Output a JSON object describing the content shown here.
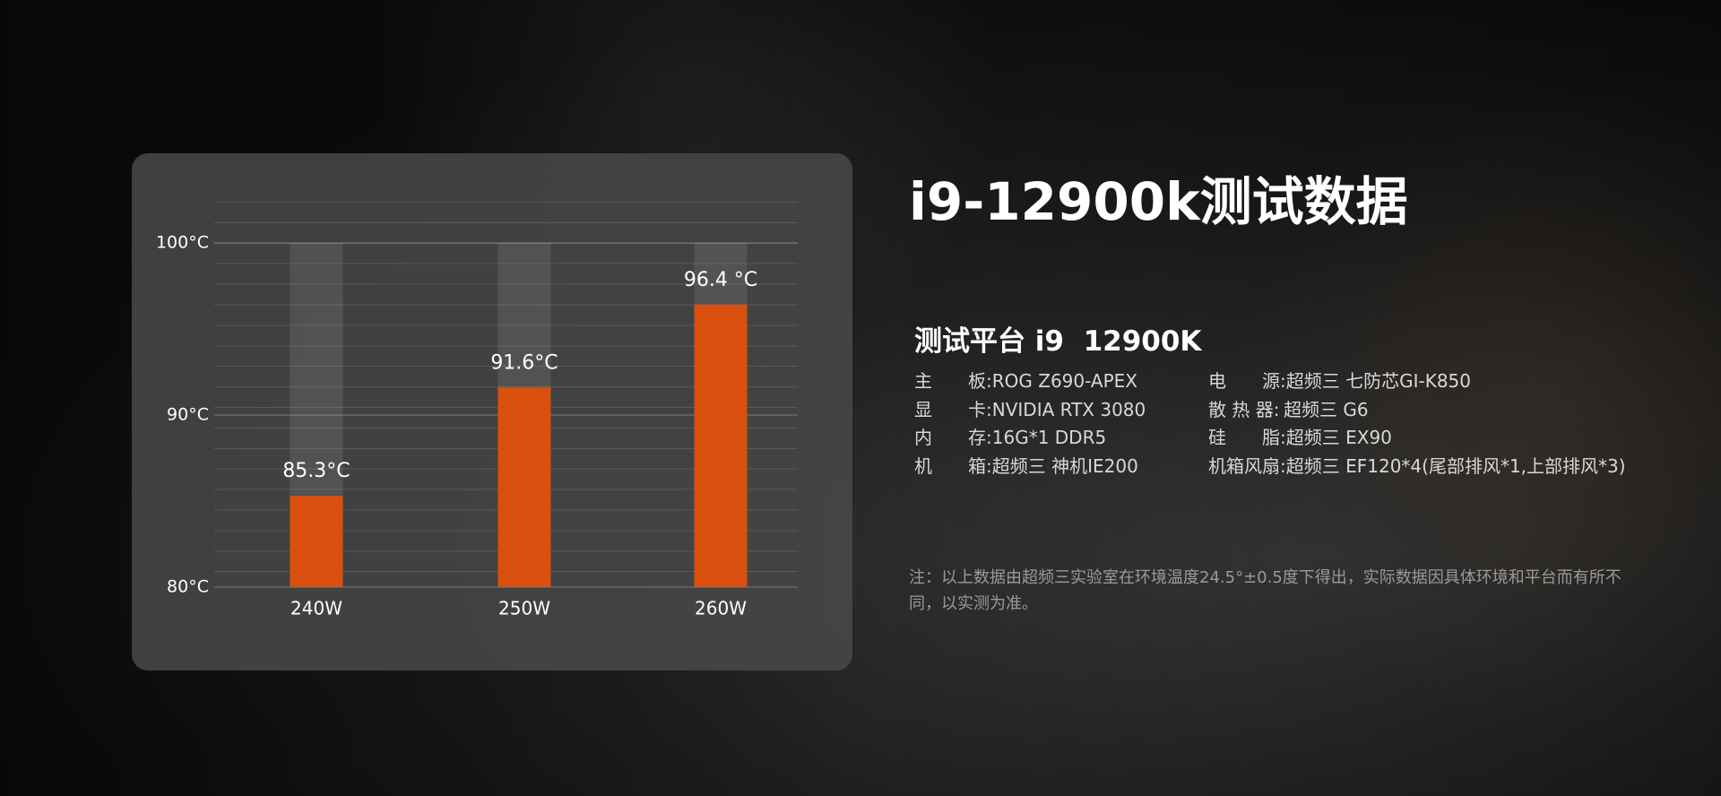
{
  "chart_data": {
    "type": "bar",
    "categories": [
      "240W",
      "250W",
      "260W"
    ],
    "values": [
      85.3,
      91.6,
      96.4
    ],
    "value_labels": [
      "85.3°C",
      "91.6°C",
      "96.4 °C"
    ],
    "color": "#d9500f",
    "ylim": [
      80,
      100
    ],
    "yticks": [
      {
        "value": 80,
        "label": "80°C"
      },
      {
        "value": 90,
        "label": "90°C"
      },
      {
        "value": 100,
        "label": "100°C"
      }
    ],
    "grid": true
  },
  "header": {
    "title": "i9-12900k测试数据"
  },
  "platform": {
    "title": "测试平台 i9  12900K",
    "left": [
      {
        "label": "主　　板:",
        "value": "ROG Z690-APEX"
      },
      {
        "label": "显　　卡:",
        "value": "NVIDIA RTX 3080"
      },
      {
        "label": "内　　存:",
        "value": "16G*1 DDR5"
      },
      {
        "label": "机　　箱:",
        "value": "超频三 神机IE200"
      }
    ],
    "right": [
      {
        "label": "电　　源:",
        "value": "超频三 七防芯GI-K850"
      },
      {
        "label": "散 热 器:",
        "value": "超频三 G6"
      },
      {
        "label": "硅　　脂:",
        "value": "超频三 EX90"
      },
      {
        "label": "机箱风扇:",
        "value": "超频三 EF120*4(尾部排风*1,上部排风*3)"
      }
    ]
  },
  "note": "注：以上数据由超频三实验室在环境温度24.5°±0.5度下得出，实际数据因具体环境和平台而有所不同，以实测为准。"
}
